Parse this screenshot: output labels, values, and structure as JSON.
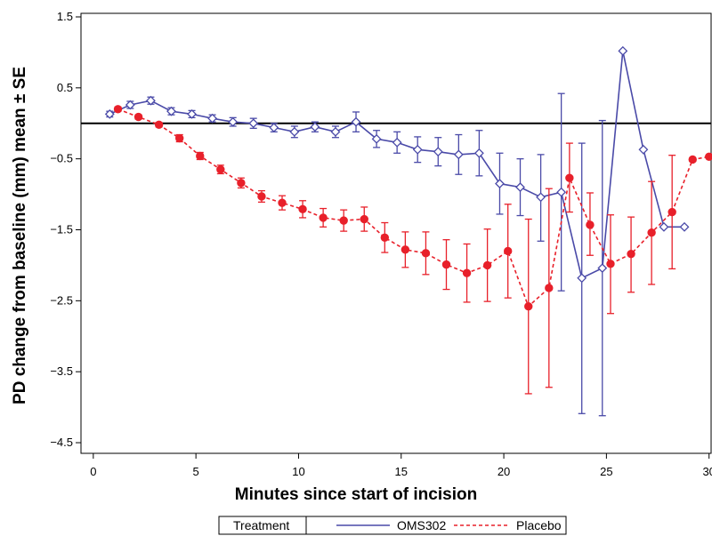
{
  "chart_data": {
    "type": "line",
    "title": "",
    "xlabel": "Minutes since start of incision",
    "ylabel": "PD change from baseline (mm) mean ± SE",
    "xlim": [
      -0.6,
      30.1
    ],
    "ylim": [
      -4.65,
      1.55
    ],
    "xticks": [
      0,
      5,
      10,
      15,
      20,
      25,
      30
    ],
    "yticks": [
      1.5,
      0.5,
      -0.5,
      -1.5,
      -2.5,
      -3.5,
      -4.5
    ],
    "xtick_labels": [
      "0",
      "5",
      "10",
      "15",
      "20",
      "25",
      "30"
    ],
    "ytick_labels": [
      "1.5",
      "0.5",
      "−0.5",
      "−1.5",
      "−2.5",
      "−3.5",
      "−4.5"
    ],
    "reference_line": 0,
    "grid": false,
    "legend": {
      "title": "Treatment",
      "position": "bottom"
    },
    "series": [
      {
        "name": "OMS302",
        "color": "#4a4aa8",
        "line": "solid",
        "marker": "open-diamond",
        "points": [
          {
            "x": 0.8,
            "y": 0.13,
            "lo": 0.09,
            "hi": 0.17
          },
          {
            "x": 1.8,
            "y": 0.26,
            "lo": 0.21,
            "hi": 0.31
          },
          {
            "x": 2.8,
            "y": 0.32,
            "lo": 0.27,
            "hi": 0.37
          },
          {
            "x": 3.8,
            "y": 0.17,
            "lo": 0.12,
            "hi": 0.22
          },
          {
            "x": 4.8,
            "y": 0.13,
            "lo": 0.08,
            "hi": 0.18
          },
          {
            "x": 5.8,
            "y": 0.07,
            "lo": 0.02,
            "hi": 0.12
          },
          {
            "x": 6.8,
            "y": 0.02,
            "lo": -0.04,
            "hi": 0.08
          },
          {
            "x": 7.8,
            "y": 0.0,
            "lo": -0.07,
            "hi": 0.07
          },
          {
            "x": 8.8,
            "y": -0.06,
            "lo": -0.12,
            "hi": 0.0
          },
          {
            "x": 9.8,
            "y": -0.12,
            "lo": -0.2,
            "hi": -0.04
          },
          {
            "x": 10.8,
            "y": -0.05,
            "lo": -0.12,
            "hi": 0.02
          },
          {
            "x": 11.8,
            "y": -0.12,
            "lo": -0.2,
            "hi": -0.04
          },
          {
            "x": 12.8,
            "y": 0.02,
            "lo": -0.12,
            "hi": 0.16
          },
          {
            "x": 13.8,
            "y": -0.22,
            "lo": -0.34,
            "hi": -0.1
          },
          {
            "x": 14.8,
            "y": -0.27,
            "lo": -0.42,
            "hi": -0.12
          },
          {
            "x": 15.8,
            "y": -0.37,
            "lo": -0.55,
            "hi": -0.19
          },
          {
            "x": 16.8,
            "y": -0.4,
            "lo": -0.6,
            "hi": -0.2
          },
          {
            "x": 17.8,
            "y": -0.44,
            "lo": -0.72,
            "hi": -0.16
          },
          {
            "x": 18.8,
            "y": -0.42,
            "lo": -0.74,
            "hi": -0.1
          },
          {
            "x": 19.8,
            "y": -0.85,
            "lo": -1.28,
            "hi": -0.42
          },
          {
            "x": 20.8,
            "y": -0.9,
            "lo": -1.3,
            "hi": -0.5
          },
          {
            "x": 21.8,
            "y": -1.04,
            "lo": -1.66,
            "hi": -0.44
          },
          {
            "x": 22.8,
            "y": -0.97,
            "lo": -2.36,
            "hi": 0.42
          },
          {
            "x": 23.8,
            "y": -2.18,
            "lo": -4.09,
            "hi": -0.28
          },
          {
            "x": 24.8,
            "y": -2.04,
            "lo": -4.12,
            "hi": 0.04
          },
          {
            "x": 25.8,
            "y": 1.02,
            "lo": null,
            "hi": null
          },
          {
            "x": 26.8,
            "y": -0.37,
            "lo": null,
            "hi": null
          },
          {
            "x": 27.8,
            "y": -1.46,
            "lo": null,
            "hi": null
          },
          {
            "x": 28.8,
            "y": -1.46,
            "lo": null,
            "hi": null
          }
        ]
      },
      {
        "name": "Placebo",
        "color": "#e8202a",
        "line": "dashed",
        "marker": "filled-circle",
        "points": [
          {
            "x": 1.2,
            "y": 0.2,
            "lo": 0.17,
            "hi": 0.23
          },
          {
            "x": 2.2,
            "y": 0.09,
            "lo": 0.06,
            "hi": 0.12
          },
          {
            "x": 3.2,
            "y": -0.02,
            "lo": -0.05,
            "hi": 0.01
          },
          {
            "x": 4.2,
            "y": -0.21,
            "lo": -0.26,
            "hi": -0.16
          },
          {
            "x": 5.2,
            "y": -0.46,
            "lo": -0.51,
            "hi": -0.41
          },
          {
            "x": 6.2,
            "y": -0.65,
            "lo": -0.71,
            "hi": -0.59
          },
          {
            "x": 7.2,
            "y": -0.84,
            "lo": -0.91,
            "hi": -0.77
          },
          {
            "x": 8.2,
            "y": -1.03,
            "lo": -1.11,
            "hi": -0.95
          },
          {
            "x": 9.2,
            "y": -1.12,
            "lo": -1.22,
            "hi": -1.02
          },
          {
            "x": 10.2,
            "y": -1.21,
            "lo": -1.33,
            "hi": -1.09
          },
          {
            "x": 11.2,
            "y": -1.33,
            "lo": -1.46,
            "hi": -1.2
          },
          {
            "x": 12.2,
            "y": -1.37,
            "lo": -1.52,
            "hi": -1.22
          },
          {
            "x": 13.2,
            "y": -1.35,
            "lo": -1.52,
            "hi": -1.18
          },
          {
            "x": 14.2,
            "y": -1.61,
            "lo": -1.82,
            "hi": -1.4
          },
          {
            "x": 15.2,
            "y": -1.78,
            "lo": -2.03,
            "hi": -1.53
          },
          {
            "x": 16.2,
            "y": -1.83,
            "lo": -2.13,
            "hi": -1.53
          },
          {
            "x": 17.2,
            "y": -1.99,
            "lo": -2.34,
            "hi": -1.64
          },
          {
            "x": 18.2,
            "y": -2.11,
            "lo": -2.52,
            "hi": -1.7
          },
          {
            "x": 19.2,
            "y": -2.0,
            "lo": -2.51,
            "hi": -1.49
          },
          {
            "x": 20.2,
            "y": -1.8,
            "lo": -2.46,
            "hi": -1.14
          },
          {
            "x": 21.2,
            "y": -2.58,
            "lo": -3.81,
            "hi": -1.35
          },
          {
            "x": 22.2,
            "y": -2.32,
            "lo": -3.72,
            "hi": -0.92
          },
          {
            "x": 23.2,
            "y": -0.77,
            "lo": -1.25,
            "hi": -0.28
          },
          {
            "x": 24.2,
            "y": -1.43,
            "lo": -1.86,
            "hi": -0.98
          },
          {
            "x": 25.2,
            "y": -1.98,
            "lo": -2.68,
            "hi": -1.29
          },
          {
            "x": 26.2,
            "y": -1.84,
            "lo": -2.38,
            "hi": -1.32
          },
          {
            "x": 27.2,
            "y": -1.54,
            "lo": -2.27,
            "hi": -0.82
          },
          {
            "x": 28.2,
            "y": -1.25,
            "lo": -2.05,
            "hi": -0.45
          },
          {
            "x": 29.2,
            "y": -0.51,
            "lo": null,
            "hi": null
          },
          {
            "x": 30.0,
            "y": -0.47,
            "lo": null,
            "hi": null
          }
        ]
      }
    ]
  }
}
